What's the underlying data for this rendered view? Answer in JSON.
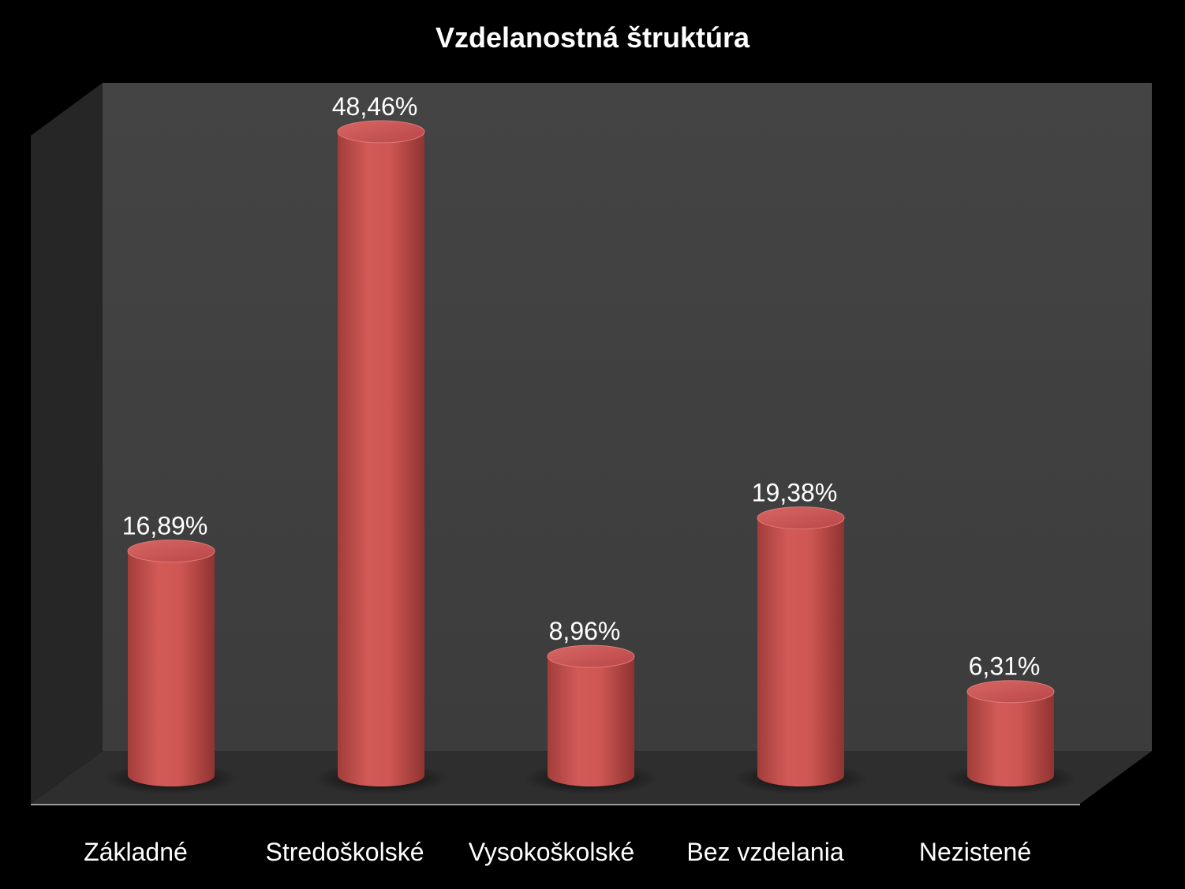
{
  "chart_data": {
    "type": "bar",
    "title": "Vzdelanostná štruktúra",
    "categories": [
      "Základné",
      "Stredoškolské",
      "Vysokoškolské",
      "Bez vzdelania",
      "Nezistené"
    ],
    "values": [
      16.89,
      48.46,
      8.96,
      19.38,
      6.31
    ],
    "value_labels": [
      "16,89%",
      "48,46%",
      "8,96%",
      "19,38%",
      "6,31%"
    ],
    "xlabel": "",
    "ylabel": "",
    "ylim": [
      0,
      50
    ],
    "grid": false,
    "legend": "none",
    "style": "3d-cylinder",
    "colors": {
      "background": "#000000",
      "back_wall": "#404040",
      "side_wall": "#262626",
      "floor": "#2e2e2e",
      "bar": "#c0504d",
      "text": "#ffffff"
    }
  }
}
